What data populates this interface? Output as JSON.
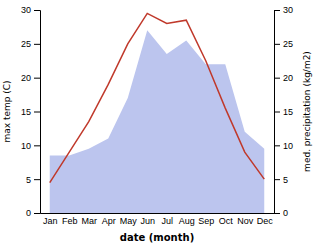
{
  "chart_data": {
    "type": "line",
    "categories": [
      "Jan",
      "Feb",
      "Mar",
      "Apr",
      "May",
      "Jun",
      "Jul",
      "Aug",
      "Sep",
      "Oct",
      "Nov",
      "Dec"
    ],
    "x_label": "date (month)",
    "y_label": "max temp (C)",
    "y2_label": "med. precipitation (kg/m2)",
    "ylim": [
      0,
      30
    ],
    "yticks": [
      0,
      5,
      10,
      15,
      20,
      25,
      30
    ],
    "y2lim": [
      0,
      30
    ],
    "y2ticks": [
      0,
      5,
      10,
      15,
      20,
      25,
      30
    ],
    "grid": false,
    "series": [
      {
        "type": "area",
        "axis": "y2",
        "color": "#bcc5ee",
        "values": [
          8.5,
          8.5,
          9.5,
          11.0,
          17.0,
          27.0,
          23.5,
          25.5,
          22.0,
          22.0,
          12.0,
          9.5
        ]
      },
      {
        "type": "line",
        "color": "#c0392b",
        "values": [
          4.5,
          9.0,
          13.5,
          19.0,
          25.0,
          29.5,
          28.0,
          28.5,
          22.5,
          15.5,
          9.0,
          5.0
        ]
      }
    ]
  }
}
